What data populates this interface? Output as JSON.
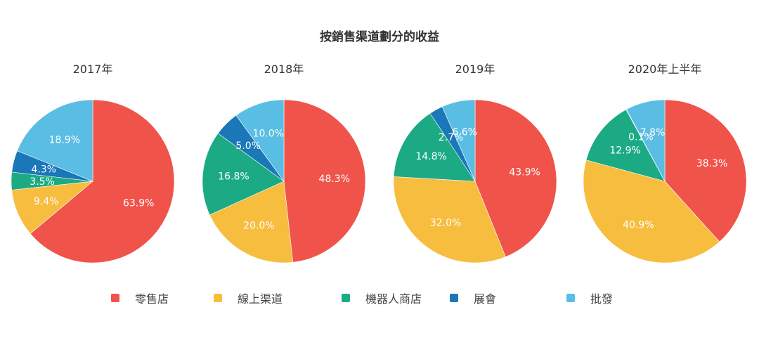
{
  "chart_data": {
    "type": "pie",
    "title": "按銷售渠道劃分的收益",
    "legend_position": "bottom",
    "categories": [
      "零售店",
      "線上渠道",
      "機器人商店",
      "展會",
      "批發"
    ],
    "colors": [
      "#F0534A",
      "#F7BD3E",
      "#1BAA84",
      "#1A77B8",
      "#5ABDE3"
    ],
    "pies": [
      {
        "title": "2017年",
        "values": [
          63.9,
          9.4,
          3.5,
          4.3,
          18.9
        ],
        "labels": [
          "63.9%",
          "9.4%",
          "3.5%",
          "4.3%",
          "18.9%"
        ]
      },
      {
        "title": "2018年",
        "values": [
          48.3,
          20.0,
          16.8,
          5.0,
          10.0
        ],
        "labels": [
          "48.3%",
          "20.0%",
          "16.8%",
          "5.0%",
          "10.0%"
        ]
      },
      {
        "title": "2019年",
        "values": [
          43.9,
          32.0,
          14.8,
          2.7,
          6.6
        ],
        "labels": [
          "43.9%",
          "32.0%",
          "14.8%",
          "2.7%",
          "6.6%"
        ]
      },
      {
        "title": "2020年上半年",
        "values": [
          38.3,
          40.9,
          12.9,
          0.1,
          7.8
        ],
        "labels": [
          "38.3%",
          "40.9%",
          "12.9%",
          "0.1%",
          "7.8%"
        ]
      }
    ]
  }
}
